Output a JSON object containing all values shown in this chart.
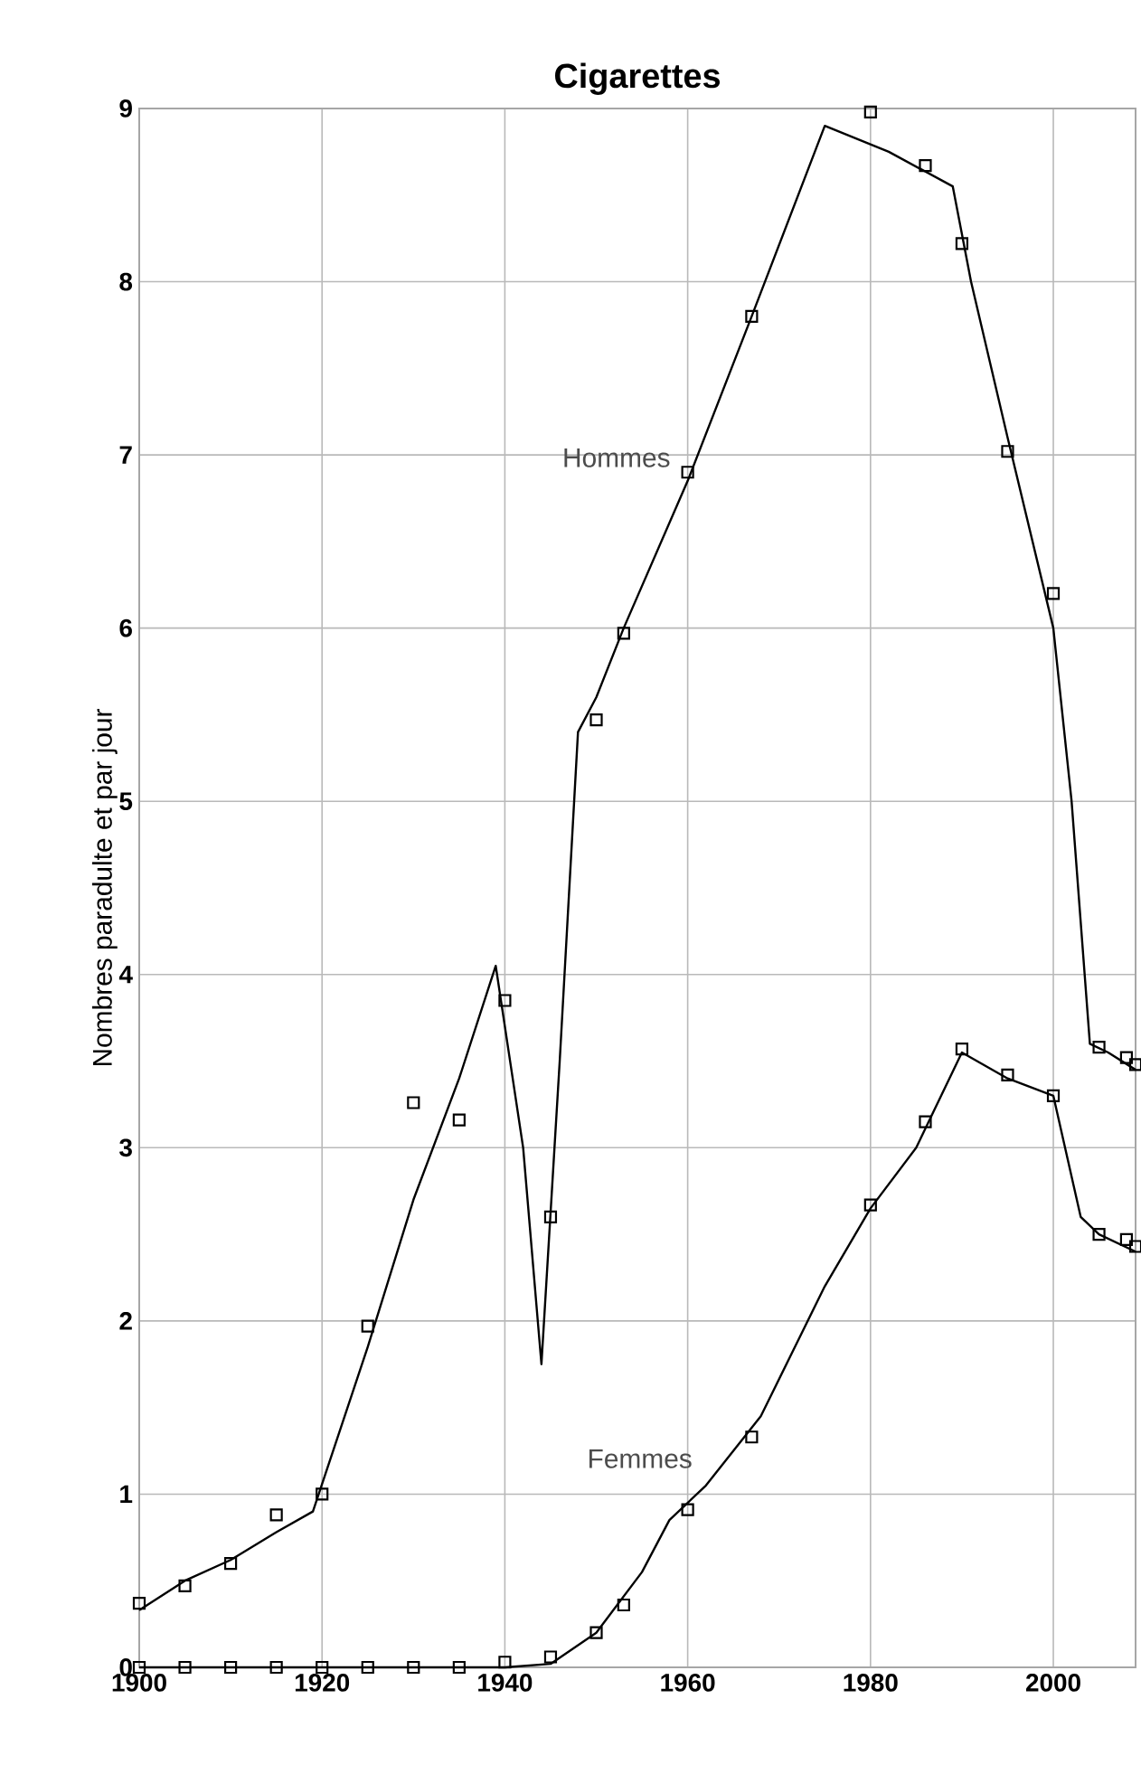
{
  "chart_data": {
    "type": "line",
    "title": "Cigarettes",
    "ylabel": "Nombres paradulte et par jour",
    "xlim": [
      1900,
      2009
    ],
    "ylim": [
      0,
      9
    ],
    "xticks": [
      1900,
      1920,
      1940,
      1960,
      1980,
      2000
    ],
    "yticks": [
      0,
      1,
      2,
      3,
      4,
      5,
      6,
      7,
      8,
      9
    ],
    "grid": true,
    "series": [
      {
        "name": "Hommes",
        "color": "#000000",
        "marker": "none",
        "x": [
          1900,
          1905,
          1910,
          1915,
          1919,
          1925,
          1930,
          1935,
          1939,
          1942,
          1944,
          1946,
          1948,
          1950,
          1953,
          1960,
          1967,
          1975,
          1982,
          1989,
          1991,
          1995,
          2000,
          2002,
          2004,
          2006,
          2009
        ],
        "values": [
          0.33,
          0.5,
          0.62,
          0.78,
          0.9,
          1.85,
          2.7,
          3.4,
          4.05,
          3.0,
          1.75,
          3.5,
          5.4,
          5.6,
          6.0,
          6.85,
          7.8,
          8.9,
          8.75,
          8.55,
          8.0,
          7.1,
          6.0,
          5.0,
          3.6,
          3.55,
          3.45
        ]
      },
      {
        "type": "scatter",
        "color": "#000000",
        "marker": "square",
        "x": [
          1900,
          1905,
          1910,
          1915,
          1920,
          1925,
          1930,
          1935,
          1940,
          1945,
          1950,
          1953,
          1960,
          1967,
          1980,
          1986,
          1990,
          1995,
          2000,
          2005,
          2008,
          2009
        ],
        "values": [
          0.37,
          0.47,
          0.6,
          0.88,
          1.0,
          1.97,
          3.26,
          3.16,
          3.85,
          2.6,
          5.47,
          5.97,
          6.9,
          7.8,
          8.98,
          8.67,
          8.22,
          7.02,
          6.2,
          3.58,
          3.52,
          3.48
        ]
      },
      {
        "name": "Femmes",
        "color": "#000000",
        "marker": "none",
        "x": [
          1900,
          1940,
          1945,
          1950,
          1955,
          1958,
          1962,
          1968,
          1975,
          1980,
          1985,
          1990,
          1995,
          2000,
          2003,
          2005,
          2009
        ],
        "values": [
          0,
          0,
          0.02,
          0.2,
          0.55,
          0.85,
          1.05,
          1.45,
          2.2,
          2.65,
          3.0,
          3.55,
          3.4,
          3.3,
          2.6,
          2.5,
          2.4
        ]
      },
      {
        "type": "scatter",
        "color": "#000000",
        "marker": "square",
        "x": [
          1900,
          1905,
          1910,
          1915,
          1920,
          1925,
          1930,
          1935,
          1940,
          1945,
          1950,
          1953,
          1960,
          1967,
          1980,
          1986,
          1990,
          1995,
          2000,
          2005,
          2008,
          2009
        ],
        "values": [
          0,
          0,
          0,
          0,
          0,
          0,
          0,
          0,
          0.03,
          0.06,
          0.2,
          0.36,
          0.91,
          1.33,
          2.67,
          3.15,
          3.57,
          3.42,
          3.3,
          2.5,
          2.47,
          2.43
        ]
      }
    ]
  }
}
